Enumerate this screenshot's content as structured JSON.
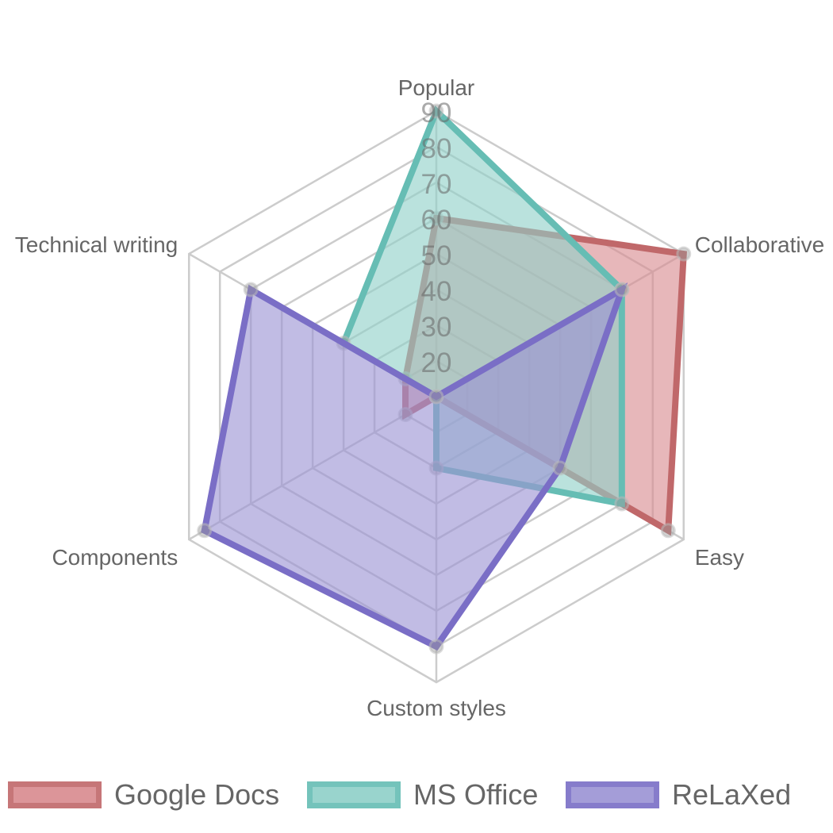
{
  "chart_data": {
    "type": "radar",
    "title": "",
    "axes": [
      "Popular",
      "Collaborative",
      "Easy",
      "Custom styles",
      "Components",
      "Technical writing"
    ],
    "ticks": [
      "20",
      "30",
      "40",
      "50",
      "60",
      "70",
      "80",
      "90"
    ],
    "scale": {
      "min": 10,
      "max": 90,
      "step": 10
    },
    "legend_position": "bottom",
    "series": [
      {
        "name": "Google Docs",
        "values": [
          60,
          90,
          85,
          10,
          20,
          20
        ],
        "stroke": "#c0686a",
        "fill": "#d98a8f"
      },
      {
        "name": "MS Office",
        "values": [
          90,
          70,
          70,
          30,
          10,
          40
        ],
        "stroke": "#66bdb4",
        "fill": "#8fd0c8"
      },
      {
        "name": "ReLaXed",
        "values": [
          10,
          70,
          50,
          80,
          85,
          70
        ],
        "stroke": "#7a6ec6",
        "fill": "#9b93d4"
      }
    ]
  }
}
